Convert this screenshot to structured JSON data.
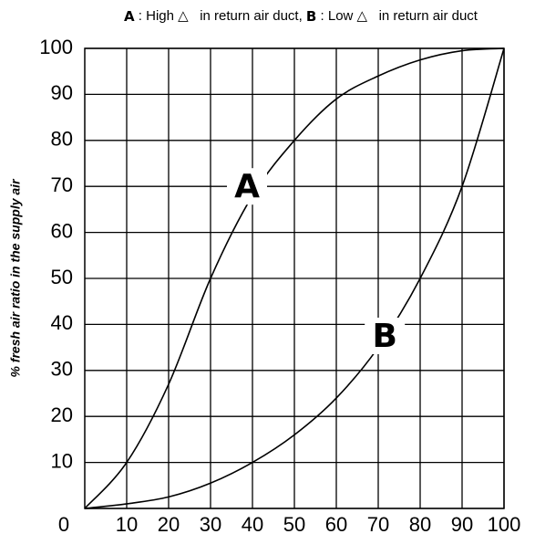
{
  "chart_data": {
    "type": "line",
    "title": [
      "A",
      " : High △   in return air duct, ",
      "B",
      " : Low △   in return air duct"
    ],
    "ylabel": "% fresh air ratio in the supply air",
    "x": [
      0,
      10,
      20,
      30,
      40,
      50,
      60,
      70,
      80,
      90,
      100
    ],
    "series": [
      {
        "name": "A",
        "color": "#000000",
        "values": [
          0,
          10,
          27,
          50,
          68,
          80,
          89,
          94,
          97.5,
          99.5,
          100
        ]
      },
      {
        "name": "B",
        "color": "#000000",
        "values": [
          0,
          1,
          2.5,
          5.5,
          10,
          16,
          24,
          35,
          50,
          70,
          100
        ]
      }
    ],
    "xlim": [
      0,
      100
    ],
    "xticks": [
      10,
      20,
      30,
      40,
      50,
      60,
      70,
      80,
      90,
      100
    ],
    "ylim": [
      0,
      100
    ],
    "yticks": [
      0,
      10,
      20,
      30,
      40,
      50,
      60,
      70,
      80,
      90,
      100
    ],
    "grid": true
  }
}
